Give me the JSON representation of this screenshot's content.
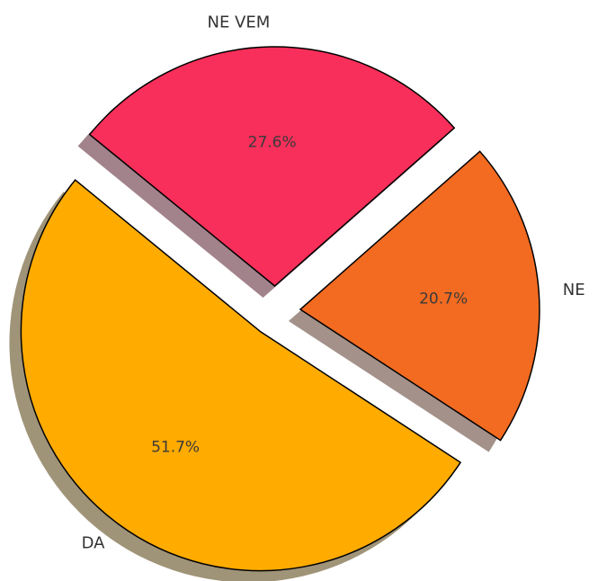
{
  "chart_data": {
    "type": "pie",
    "categories": [
      "DA",
      "NE",
      "NE VEM"
    ],
    "values": [
      51.7,
      20.7,
      27.6
    ],
    "value_labels": [
      "51.7%",
      "20.7%",
      "27.6%"
    ],
    "colors": [
      "#ffab00",
      "#f26b21",
      "#f72f5a"
    ],
    "shadow_colors": [
      "#a09478",
      "#a3918a",
      "#a2828b"
    ]
  }
}
